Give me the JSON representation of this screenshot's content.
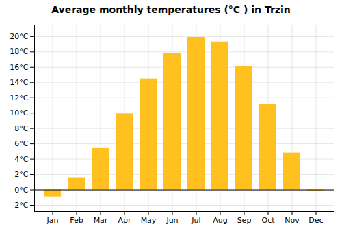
{
  "chart_data": {
    "type": "bar",
    "title": "Average monthly temperatures (°C ) in Trzin",
    "categories": [
      "Jan",
      "Feb",
      "Mar",
      "Apr",
      "May",
      "Jun",
      "Jul",
      "Aug",
      "Sep",
      "Oct",
      "Nov",
      "Dec"
    ],
    "values": [
      -0.9,
      1.6,
      5.4,
      9.9,
      14.5,
      17.8,
      19.9,
      19.3,
      16.1,
      11.1,
      4.8,
      -0.2
    ],
    "color": "#FFC020",
    "ylim": [
      -2.8,
      21.5
    ],
    "yticks": [
      {
        "value": -2,
        "label": "-2°C"
      },
      {
        "value": 0,
        "label": "0°C"
      },
      {
        "value": 2,
        "label": "2°C"
      },
      {
        "value": 4,
        "label": "4°C"
      },
      {
        "value": 6,
        "label": "6°C"
      },
      {
        "value": 8,
        "label": "8°C"
      },
      {
        "value": 10,
        "label": "10°C"
      },
      {
        "value": 12,
        "label": "12°C"
      },
      {
        "value": 14,
        "label": "14°C"
      },
      {
        "value": 16,
        "label": "16°C"
      },
      {
        "value": 18,
        "label": "18°C"
      },
      {
        "value": 20,
        "label": "20°C"
      }
    ],
    "grid": true
  }
}
